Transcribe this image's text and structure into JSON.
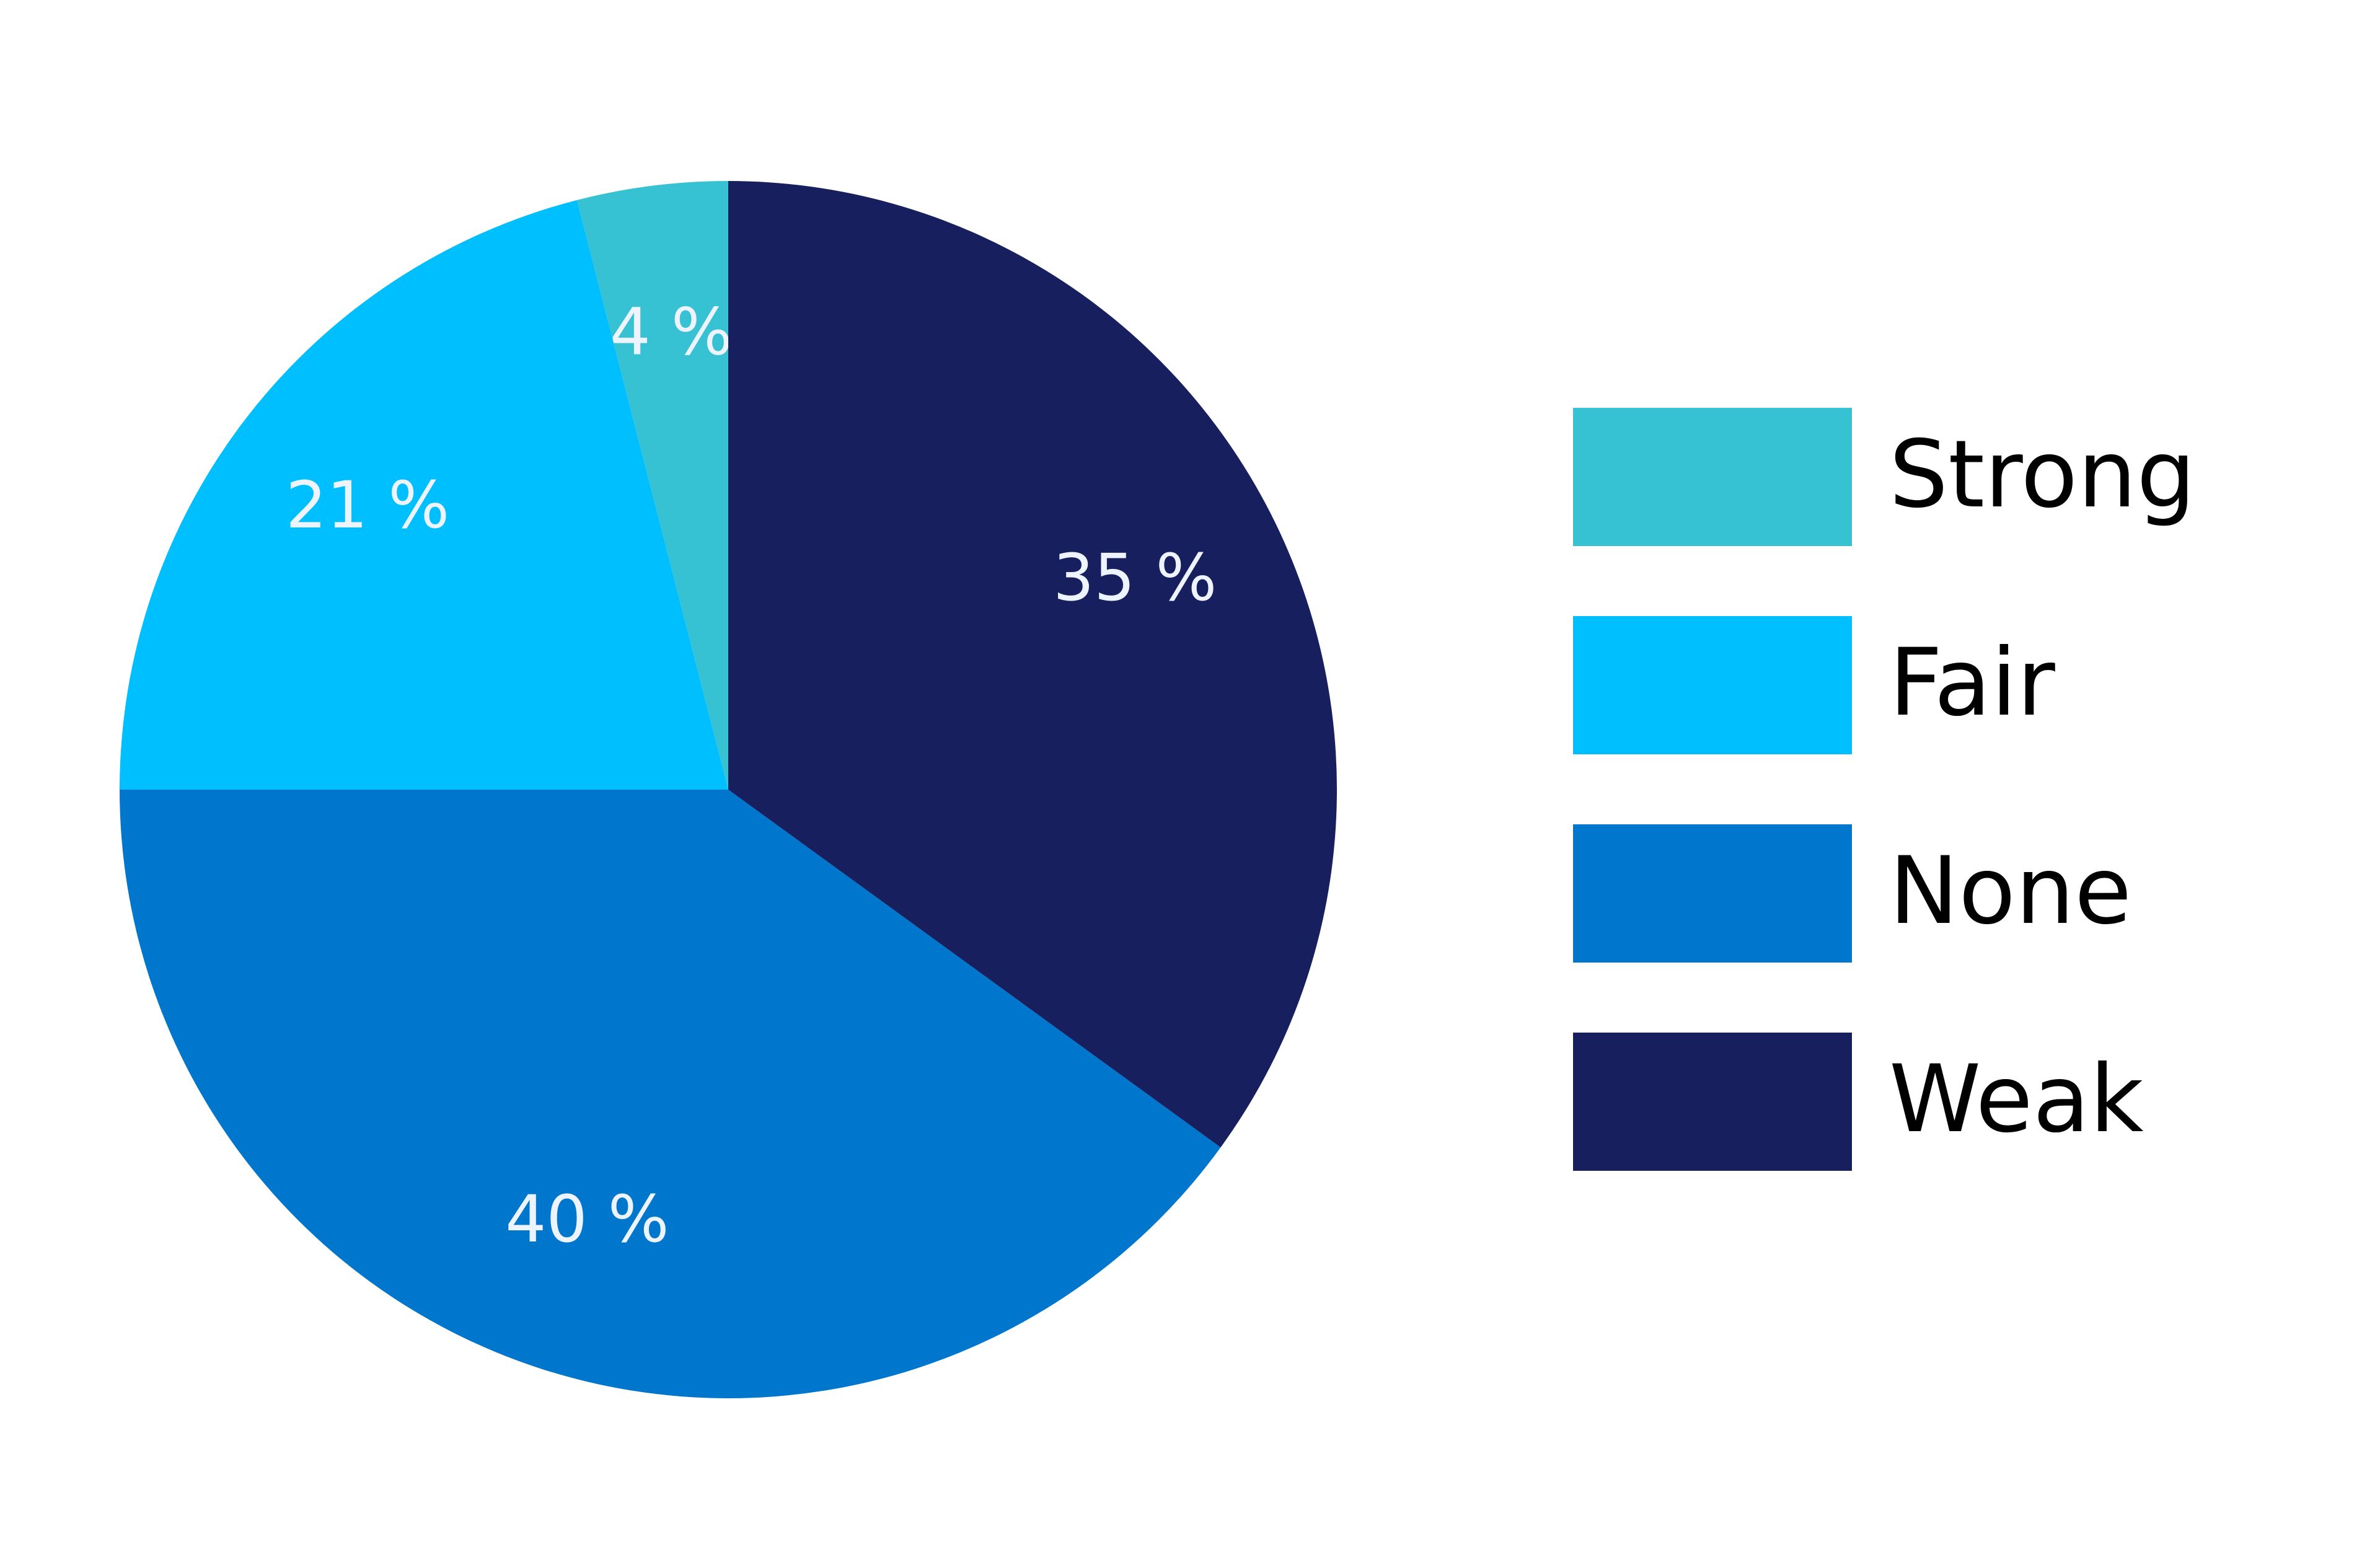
{
  "chart_data": {
    "type": "pie",
    "categories": [
      "Strong",
      "Fair",
      "None",
      "Weak"
    ],
    "values": [
      4,
      21,
      40,
      35
    ],
    "value_labels": [
      "4 %",
      "21 %",
      "40 %",
      "35 %"
    ],
    "colors": [
      "#36c2d3",
      "#00bfff",
      "#0077cc",
      "#181f5e"
    ],
    "legend": "right"
  }
}
